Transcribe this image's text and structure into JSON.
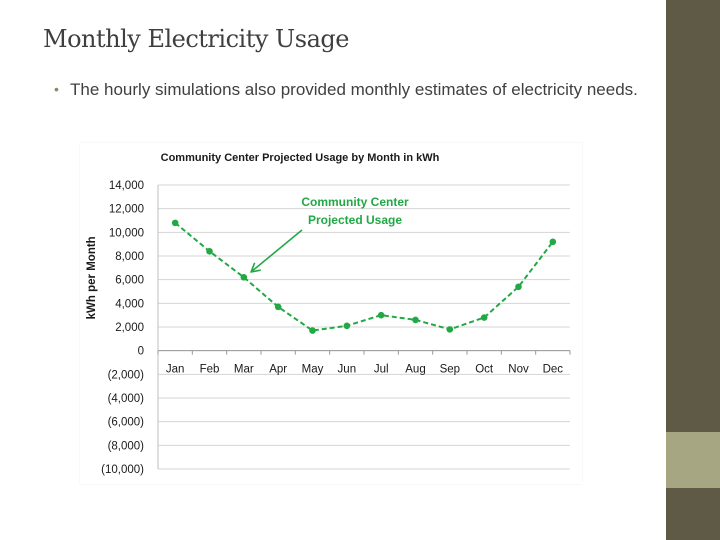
{
  "slide": {
    "title": "Monthly Electricity Usage",
    "bullet": "The hourly simulations also provided monthly estimates of electricity needs."
  },
  "theme": {
    "band_color": "#5f5a45",
    "band_accent_color": "#a6a683",
    "series_color": "#22a845"
  },
  "chart_data": {
    "type": "line",
    "title": "Community Center Projected Usage by Month in kWh",
    "xlabel": "",
    "ylabel": "kWh per Month",
    "ylim": [
      -10000,
      14000
    ],
    "yticks": [
      14000,
      12000,
      10000,
      8000,
      6000,
      4000,
      2000,
      0,
      -2000,
      -4000,
      -6000,
      -8000,
      -10000
    ],
    "ytick_labels": [
      "14,000",
      "12,000",
      "10,000",
      "8,000",
      "6,000",
      "4,000",
      "2,000",
      "0",
      "(2,000)",
      "(4,000)",
      "(6,000)",
      "(8,000)",
      "(10,000)"
    ],
    "categories": [
      "Jan",
      "Feb",
      "Mar",
      "Apr",
      "May",
      "Jun",
      "Jul",
      "Aug",
      "Sep",
      "Oct",
      "Nov",
      "Dec"
    ],
    "series": [
      {
        "values": [
          10800,
          8400,
          6200,
          3700,
          1700,
          2100,
          3000,
          2600,
          1800,
          2800,
          5400,
          9200
        ],
        "line_style": "dashed"
      }
    ],
    "grid": true,
    "legend": "none",
    "annotation": {
      "lines": [
        "Community Center",
        "Projected Usage"
      ],
      "points_to": "Mar"
    }
  }
}
